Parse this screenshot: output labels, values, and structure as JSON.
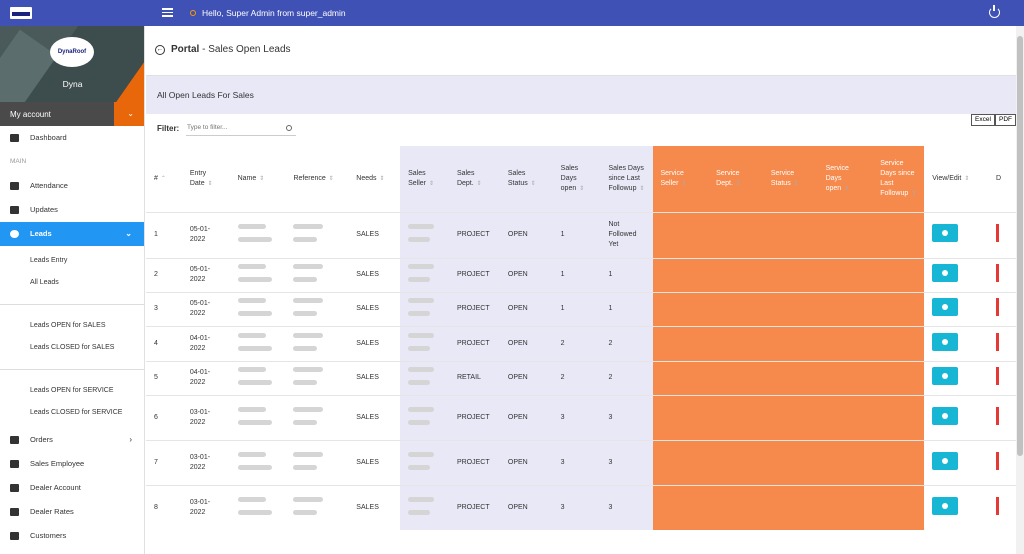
{
  "topbar": {
    "greeting": "Hello, Super Admin from super_admin"
  },
  "sidebar": {
    "profile_name": "Dyna",
    "logo_text": "DynaRoof",
    "my_account": "My account",
    "items": [
      {
        "label": "Dashboard"
      },
      {
        "section": "MAIN"
      },
      {
        "label": "Attendance"
      },
      {
        "label": "Updates"
      },
      {
        "label": "Leads"
      }
    ],
    "lead_subitems": [
      "Leads Entry",
      "All Leads"
    ],
    "sales_subitems": [
      "Leads OPEN for SALES",
      "Leads CLOSED for SALES"
    ],
    "service_subitems": [
      "Leads OPEN for SERVICE",
      "Leads CLOSED for SERVICE"
    ],
    "bottom_items": [
      "Orders",
      "Sales Employee",
      "Dealer Account",
      "Dealer Rates",
      "Customers"
    ]
  },
  "header": {
    "portal": "Portal",
    "title": "- Sales Open Leads"
  },
  "band_title": "All Open Leads For Sales",
  "filter": {
    "label": "Filter:",
    "placeholder": "Type to filter..."
  },
  "export": {
    "excel": "Excel",
    "pdf": "PDF"
  },
  "table": {
    "columns": [
      "#",
      "Entry Date",
      "Name",
      "Reference",
      "Needs",
      "Sales Seller",
      "Sales Dept.",
      "Sales Status",
      "Sales Days open",
      "Sales Days since Last Followup",
      "Service Seller",
      "Service Dept.",
      "Service Status",
      "Service Days open",
      "Service Days since Last Followup",
      "View/Edit",
      "D"
    ],
    "rows": [
      {
        "n": "1",
        "date": "05-01-2022",
        "needs": "SALES",
        "dept": "PROJECT",
        "status": "OPEN",
        "days": "1",
        "followup": "Not Followed Yet"
      },
      {
        "n": "2",
        "date": "05-01-2022",
        "needs": "SALES",
        "dept": "PROJECT",
        "status": "OPEN",
        "days": "1",
        "followup": "1"
      },
      {
        "n": "3",
        "date": "05-01-2022",
        "needs": "SALES",
        "dept": "PROJECT",
        "status": "OPEN",
        "days": "1",
        "followup": "1"
      },
      {
        "n": "4",
        "date": "04-01-2022",
        "needs": "SALES",
        "dept": "PROJECT",
        "status": "OPEN",
        "days": "2",
        "followup": "2"
      },
      {
        "n": "5",
        "date": "04-01-2022",
        "needs": "SALES",
        "dept": "RETAIL",
        "status": "OPEN",
        "days": "2",
        "followup": "2"
      },
      {
        "n": "6",
        "date": "03-01-2022",
        "needs": "SALES",
        "dept": "PROJECT",
        "status": "OPEN",
        "days": "3",
        "followup": "3"
      },
      {
        "n": "7",
        "date": "03-01-2022",
        "needs": "SALES",
        "dept": "PROJECT",
        "status": "OPEN",
        "days": "3",
        "followup": "3"
      },
      {
        "n": "8",
        "date": "03-01-2022",
        "needs": "SALES",
        "dept": "PROJECT",
        "status": "OPEN",
        "days": "3",
        "followup": "3"
      }
    ]
  },
  "colors": {
    "topbar": "#3f51b5",
    "active": "#2196f3",
    "sales_bg": "#e8e8f7",
    "service_bg": "#f58a4c",
    "view_button": "#17b6d4"
  }
}
